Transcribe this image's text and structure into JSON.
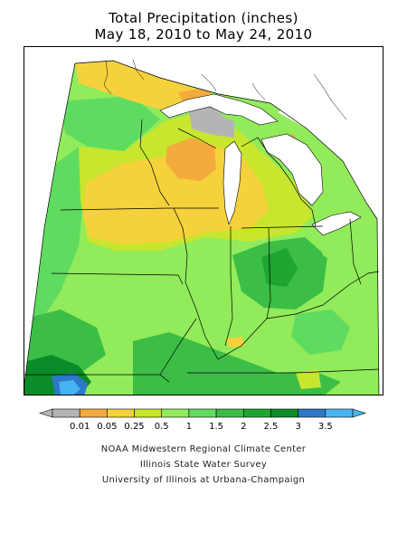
{
  "title": {
    "line1": "Total Precipitation (inches)",
    "line2": "May 18, 2010 to May 24, 2010"
  },
  "legend": {
    "bins": [
      {
        "label": "",
        "color": "#b4b4b4"
      },
      {
        "label": "0.01",
        "color": "#f5aa3c"
      },
      {
        "label": "0.05",
        "color": "#f5d23c"
      },
      {
        "label": "0.25",
        "color": "#c8e62d"
      },
      {
        "label": "0.5",
        "color": "#91eb5a"
      },
      {
        "label": "1",
        "color": "#5fdc5f"
      },
      {
        "label": "1.5",
        "color": "#3cbe46"
      },
      {
        "label": "2",
        "color": "#1ea532"
      },
      {
        "label": "2.5",
        "color": "#0a8c28"
      },
      {
        "label": "3",
        "color": "#2d78c8"
      },
      {
        "label": "3.5",
        "color": "#46b4f0"
      }
    ]
  },
  "colors": {
    "none": "#b4b4b4",
    "orange": "#f5aa3c",
    "yellow": "#f5d23c",
    "yellow_green": "#c8e62d",
    "light_green": "#91eb5a",
    "green": "#5fdc5f",
    "mid_green": "#3cbe46",
    "green_dark": "#1ea532",
    "dark_green": "#0a8c28",
    "blue": "#2d78c8",
    "light_blue": "#46b4f0",
    "water": "#ffffff",
    "boundary": "#000000"
  },
  "credits": {
    "line1": "NOAA Midwestern Regional Climate Center",
    "line2": "Illinois State Water Survey",
    "line3": "University of Illinois at Urbana-Champaign"
  }
}
